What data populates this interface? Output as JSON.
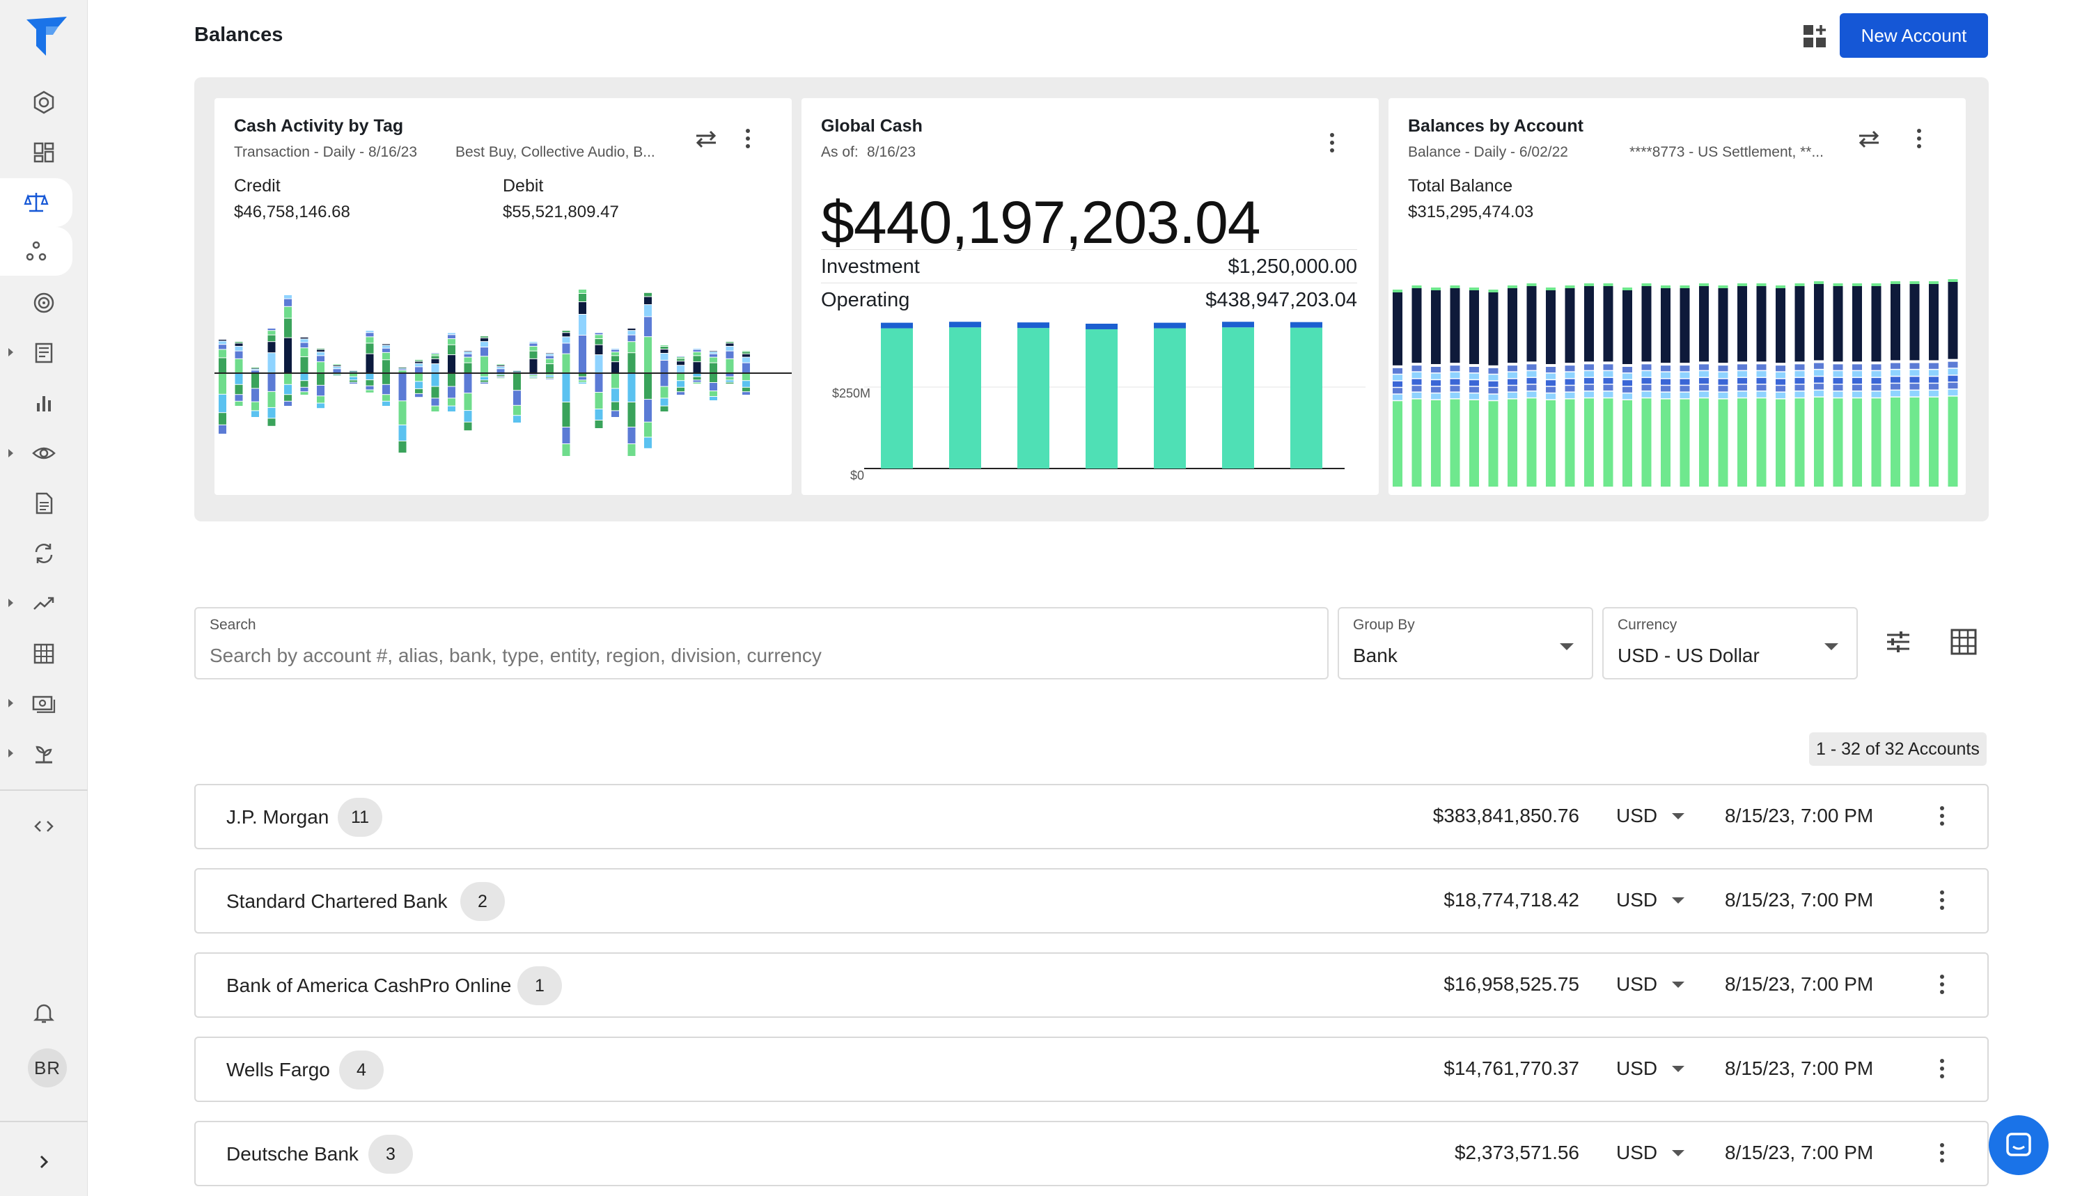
{
  "header": {
    "title": "Balances",
    "new_account_label": "New Account"
  },
  "sidebar": {
    "icons": [
      "logo-icon",
      "hexagon-icon",
      "dashboard-icon",
      "scale-icon",
      "nodes-icon",
      "target-icon",
      "ledger-icon",
      "bar-chart-icon",
      "eye-icon",
      "document-icon",
      "sync-icon",
      "trend-icon",
      "table-icon",
      "cash-icon",
      "plant-icon",
      "code-icon",
      "bell-icon",
      "expand-icon"
    ],
    "avatar_initials": "BR"
  },
  "widgets": {
    "cash_activity": {
      "title": "Cash Activity by Tag",
      "subtitle": "Transaction - Daily - 8/16/23",
      "tags": "Best Buy, Collective Audio, B...",
      "credit_label": "Credit",
      "credit_value": "$46,758,146.68",
      "debit_label": "Debit",
      "debit_value": "$55,521,809.47"
    },
    "global_cash": {
      "title": "Global Cash",
      "as_of_label": "As of:",
      "as_of_date": "8/16/23",
      "total": "$440,197,203.04",
      "rows": [
        {
          "label": "Investment",
          "value": "$1,250,000.00"
        },
        {
          "label": "Operating",
          "value": "$438,947,203.04"
        }
      ],
      "y_ticks": [
        "$250M",
        "$0"
      ]
    },
    "balances_by_account": {
      "title": "Balances by Account",
      "subtitle": "Balance - Daily - 6/02/22",
      "accounts": "****8773 - US Settlement, **...",
      "total_label": "Total Balance",
      "total_value": "$315,295,474.03"
    }
  },
  "chart_data": [
    {
      "type": "bar",
      "title": "Cash Activity by Tag",
      "note": "stacked daily credits (above) and debits (below) zero line",
      "series": [
        {
          "name": "Credit",
          "values": [
            0.3,
            0.28,
            0.05,
            0.4,
            0.7,
            0.32,
            0.22,
            0.08,
            0.02,
            0.38,
            0.26,
            0.05,
            0.12,
            0.18,
            0.36,
            0.2,
            0.33,
            0.08,
            0.02,
            0.28,
            0.18,
            0.38,
            0.75,
            0.36,
            0.22,
            0.4,
            0.72,
            0.25,
            0.15,
            0.22,
            0.2,
            0.28,
            0.2
          ]
        },
        {
          "name": "Debit",
          "values": [
            -0.55,
            -0.3,
            -0.4,
            -0.48,
            -0.3,
            -0.2,
            -0.32,
            -0.02,
            -0.1,
            -0.18,
            -0.3,
            -0.72,
            -0.22,
            -0.35,
            -0.35,
            -0.52,
            -0.1,
            -0.05,
            -0.45,
            -0.05,
            -0.06,
            -0.75,
            -0.1,
            -0.5,
            -0.4,
            -0.75,
            -0.68,
            -0.35,
            -0.2,
            -0.1,
            -0.25,
            -0.1,
            -0.2
          ]
        }
      ]
    },
    {
      "type": "bar",
      "title": "Global Cash",
      "series": [
        {
          "name": "Operating",
          "values": [
            437,
            440,
            438,
            434,
            437,
            440,
            439
          ]
        },
        {
          "name": "Investment",
          "values": [
            1.25,
            1.25,
            1.25,
            1.25,
            1.25,
            1.25,
            1.25
          ]
        }
      ],
      "y_ticks": [
        "$0",
        "$250M"
      ]
    },
    {
      "type": "bar",
      "title": "Balances by Account",
      "note": "30 daily stacked bars of account balances",
      "series": [
        {
          "name": "Total",
          "values": [
            0.93,
            0.95,
            0.94,
            0.95,
            0.94,
            0.93,
            0.95,
            0.96,
            0.94,
            0.95,
            0.96,
            0.96,
            0.94,
            0.96,
            0.95,
            0.95,
            0.96,
            0.95,
            0.96,
            0.96,
            0.95,
            0.96,
            0.97,
            0.96,
            0.96,
            0.96,
            0.97,
            0.97,
            0.97,
            0.98
          ]
        }
      ]
    }
  ],
  "filters": {
    "search_label": "Search",
    "search_placeholder": "Search by account #, alias, bank, type, entity, region, division, currency",
    "group_label": "Group By",
    "group_value": "Bank",
    "currency_label": "Currency",
    "currency_value": "USD - US Dollar"
  },
  "count_text": "1 - 32 of 32 Accounts",
  "banks": [
    {
      "name": "J.P. Morgan",
      "count": "11",
      "amount": "$383,841,850.76",
      "currency": "USD",
      "date": "8/15/23, 7:00 PM"
    },
    {
      "name": "Standard Chartered Bank",
      "count": "2",
      "amount": "$18,774,718.42",
      "currency": "USD",
      "date": "8/15/23, 7:00 PM"
    },
    {
      "name": "Bank of America CashPro Online",
      "count": "1",
      "amount": "$16,958,525.75",
      "currency": "USD",
      "date": "8/15/23, 7:00 PM"
    },
    {
      "name": "Wells Fargo",
      "count": "4",
      "amount": "$14,761,770.37",
      "currency": "USD",
      "date": "8/15/23, 7:00 PM"
    },
    {
      "name": "Deutsche Bank",
      "count": "3",
      "amount": "$2,373,571.56",
      "currency": "USD",
      "date": "8/15/23, 7:00 PM"
    }
  ]
}
